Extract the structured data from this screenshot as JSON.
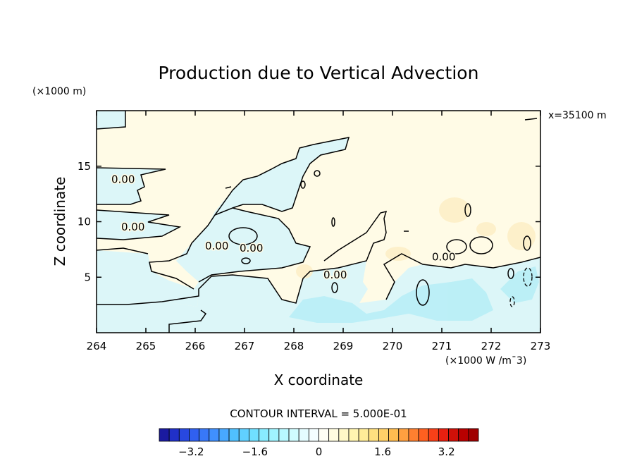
{
  "chart_data": {
    "type": "contour",
    "title": "Production due to Vertical Advection",
    "xlabel": "X coordinate",
    "ylabel": "Z coordinate",
    "x_unit_label": "(×1000 W /m¯3)",
    "y_unit_label": "(×1000 m)",
    "xlim": [
      264,
      273
    ],
    "ylim": [
      0,
      20
    ],
    "x_ticks": [
      264,
      265,
      266,
      267,
      268,
      269,
      270,
      271,
      272,
      273
    ],
    "y_ticks": [
      5,
      10,
      15
    ],
    "annotation": "x=35100 m",
    "contour_interval_text": "CONTOUR INTERVAL = 5.000E-01",
    "contour_labels": [
      {
        "text": "0.00",
        "x": 264.3,
        "y": 13.5
      },
      {
        "text": "0.00",
        "x": 264.5,
        "y": 9.2
      },
      {
        "text": "0.00",
        "x": 266.2,
        "y": 7.5
      },
      {
        "text": "0.00",
        "x": 266.9,
        "y": 7.3
      },
      {
        "text": "0.00",
        "x": 268.6,
        "y": 4.9
      },
      {
        "text": "0.00",
        "x": 270.8,
        "y": 6.5
      }
    ],
    "colorbar": {
      "ticks": [
        -3.2,
        -1.6,
        0,
        1.6,
        3.2
      ],
      "tick_labels": [
        "-3.2",
        "-1.6",
        "0",
        "1.6",
        "3.2"
      ],
      "range": [
        -4.0,
        4.0
      ],
      "colors": [
        "#1a1aa0",
        "#2030c8",
        "#2848e0",
        "#3060f0",
        "#3878f8",
        "#4090ff",
        "#48a8ff",
        "#50c0ff",
        "#60d0ff",
        "#70e0ff",
        "#88ecff",
        "#a0f4ff",
        "#b8f8ff",
        "#d0fcff",
        "#e4fcff",
        "#f4feff",
        "#fffff4",
        "#fffce0",
        "#fff8c8",
        "#fff4b0",
        "#ffec98",
        "#ffe080",
        "#ffd068",
        "#ffbc50",
        "#ffa040",
        "#ff8030",
        "#ff6020",
        "#f84018",
        "#e82010",
        "#d01008",
        "#b80000",
        "#a00000"
      ]
    },
    "fill_colors": {
      "positive": "#fffbe6",
      "negative": "#dcf6f8",
      "neg_strong": "#b4eef6",
      "pos_strong": "#fdeec4"
    }
  }
}
